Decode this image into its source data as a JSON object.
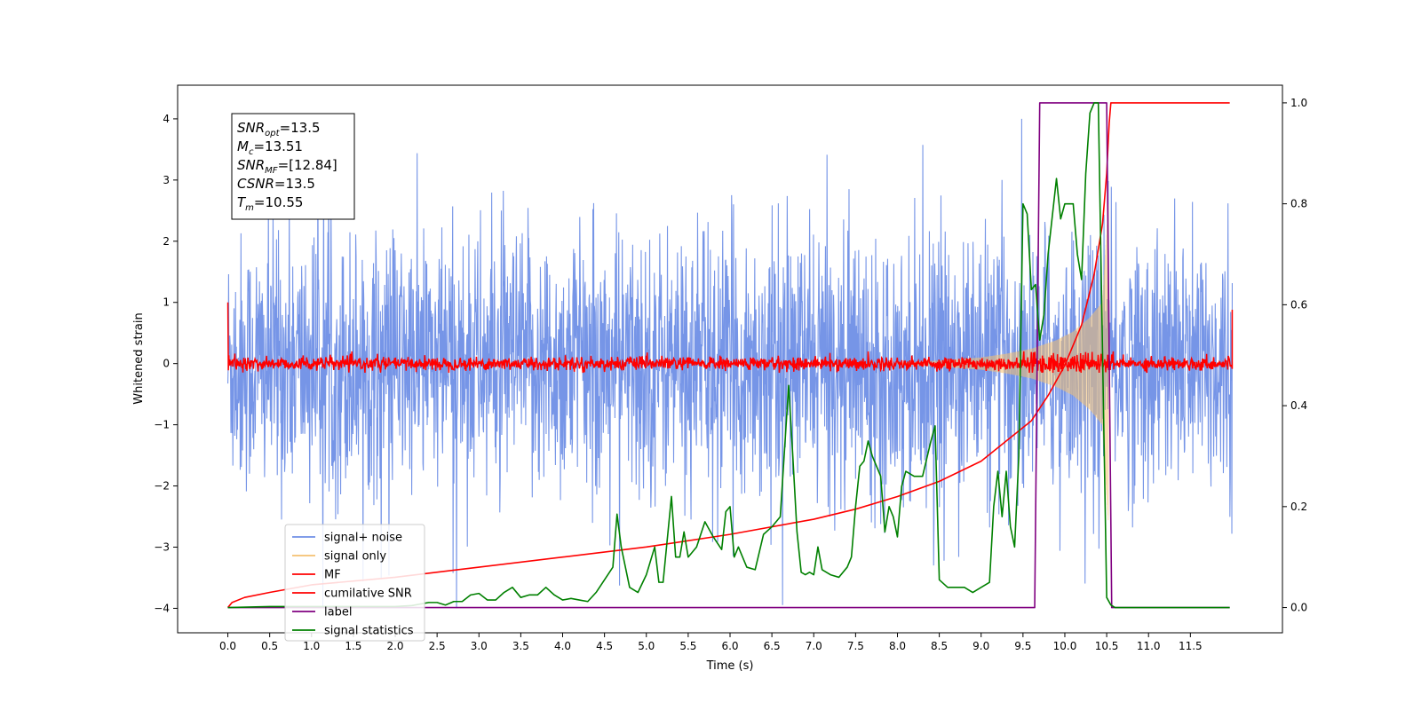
{
  "chart_data": {
    "type": "line",
    "xlabel": "Time (s)",
    "ylabel": "Whitened strain",
    "xlim": [
      -0.6,
      12.6
    ],
    "ylim": [
      -4.4,
      4.55
    ],
    "ylim_right": [
      -0.05,
      1.035
    ],
    "x_ticks": [
      0.0,
      0.5,
      1.0,
      1.5,
      2.0,
      2.5,
      3.0,
      3.5,
      4.0,
      4.5,
      5.0,
      5.5,
      6.0,
      6.5,
      7.0,
      7.5,
      8.0,
      8.5,
      9.0,
      9.5,
      10.0,
      10.5,
      11.0,
      11.5
    ],
    "x_tick_labels": [
      "0.0",
      "0.5",
      "1.0",
      "1.5",
      "2.0",
      "2.5",
      "3.0",
      "3.5",
      "4.0",
      "4.5",
      "5.0",
      "5.5",
      "6.0",
      "6.5",
      "7.0",
      "7.5",
      "8.0",
      "8.5",
      "9.0",
      "9.5",
      "10.0",
      "10.5",
      "11.0",
      "11.5"
    ],
    "y_ticks": [
      4,
      3,
      2,
      1,
      0,
      -1,
      -2,
      -3,
      -4
    ],
    "y_tick_labels": [
      "4",
      "3",
      "2",
      "1",
      "0",
      "−1",
      "−2",
      "−3",
      "−4"
    ],
    "y_right_ticks": [
      1.0,
      0.8,
      0.6,
      0.4,
      0.2,
      0.0
    ],
    "y_right_tick_labels": [
      "1.0",
      "0.8",
      "0.6",
      "0.4",
      "0.2",
      "0.0"
    ],
    "annotation": {
      "lines": [
        {
          "main": "SNR",
          "sub": "opt",
          "rest": "=13.5"
        },
        {
          "main": "M",
          "sub": "c",
          "rest": "=13.51"
        },
        {
          "main": "SNR",
          "sub": "MF",
          "rest": "=[12.84]"
        },
        {
          "main": "CSNR",
          "sub": "",
          "rest": "=13.5"
        },
        {
          "main": "T",
          "sub": "m",
          "rest": "=10.55"
        }
      ]
    },
    "legend": {
      "location": "lower-left",
      "entries": [
        "signal+ noise",
        "signal only",
        "MF",
        "cumilative SNR",
        "label",
        "signal statistics"
      ]
    },
    "series": [
      {
        "name": "signal+ noise",
        "color": "#6f8fe6",
        "axis": "left",
        "kind": "noise",
        "x_range": [
          0.0,
          12.0
        ],
        "approx_range": [
          -4.0,
          4.0
        ]
      },
      {
        "name": "signal only",
        "color": "#f5c170",
        "axis": "left",
        "kind": "chirp",
        "envelope_t": [
          8.0,
          8.5,
          9.0,
          9.3,
          9.6,
          9.9,
          10.1,
          10.3,
          10.45,
          10.52
        ],
        "envelope_a": [
          0.01,
          0.05,
          0.1,
          0.16,
          0.24,
          0.38,
          0.52,
          0.75,
          1.0,
          2.6
        ]
      },
      {
        "name": "MF",
        "color": "#ff0000",
        "axis": "left",
        "kind": "mf",
        "x_range": [
          0.0,
          12.0
        ],
        "start_value": 1.0,
        "end_value": 0.88,
        "approx_range": [
          -0.15,
          0.2
        ]
      },
      {
        "name": "cumilative SNR",
        "color": "#ff0000",
        "axis": "right",
        "x": [
          0.0,
          0.05,
          0.2,
          0.5,
          1.0,
          2.0,
          3.0,
          4.0,
          5.0,
          6.0,
          7.0,
          7.5,
          8.0,
          8.5,
          9.0,
          9.3,
          9.6,
          9.8,
          10.0,
          10.2,
          10.35,
          10.45,
          10.5,
          10.53,
          10.55,
          11.97
        ],
        "y": [
          0.0,
          0.01,
          0.02,
          0.03,
          0.045,
          0.06,
          0.08,
          0.1,
          0.12,
          0.145,
          0.175,
          0.195,
          0.22,
          0.25,
          0.29,
          0.33,
          0.37,
          0.42,
          0.48,
          0.56,
          0.66,
          0.76,
          0.86,
          0.96,
          1.0,
          1.0
        ]
      },
      {
        "name": "label",
        "color": "#800080",
        "axis": "right",
        "x": [
          0.0,
          9.64,
          9.7,
          10.5,
          10.56,
          11.97
        ],
        "y": [
          0.0,
          0.0,
          1.0,
          1.0,
          0.0,
          0.0
        ]
      },
      {
        "name": "signal statistics",
        "color": "#008000",
        "axis": "right",
        "x": [
          0.0,
          0.5,
          1.0,
          1.5,
          2.0,
          2.2,
          2.4,
          2.5,
          2.6,
          2.7,
          2.8,
          2.9,
          3.0,
          3.1,
          3.2,
          3.3,
          3.4,
          3.5,
          3.6,
          3.7,
          3.8,
          3.9,
          4.0,
          4.1,
          4.2,
          4.3,
          4.4,
          4.5,
          4.6,
          4.65,
          4.7,
          4.8,
          4.9,
          5.0,
          5.1,
          5.15,
          5.2,
          5.3,
          5.35,
          5.4,
          5.45,
          5.5,
          5.6,
          5.7,
          5.8,
          5.9,
          5.95,
          6.0,
          6.05,
          6.1,
          6.2,
          6.3,
          6.4,
          6.5,
          6.6,
          6.7,
          6.75,
          6.8,
          6.85,
          6.9,
          6.95,
          7.0,
          7.05,
          7.1,
          7.2,
          7.3,
          7.4,
          7.45,
          7.5,
          7.55,
          7.6,
          7.65,
          7.7,
          7.8,
          7.85,
          7.9,
          7.95,
          8.0,
          8.05,
          8.1,
          8.2,
          8.3,
          8.4,
          8.45,
          8.5,
          8.6,
          8.7,
          8.8,
          8.9,
          9.0,
          9.1,
          9.15,
          9.2,
          9.25,
          9.3,
          9.35,
          9.4,
          9.45,
          9.5,
          9.55,
          9.6,
          9.65,
          9.7,
          9.75,
          9.8,
          9.9,
          9.95,
          10.0,
          10.1,
          10.15,
          10.2,
          10.25,
          10.3,
          10.35,
          10.4,
          10.5,
          10.55,
          10.6,
          10.65,
          10.7,
          11.97
        ],
        "y": [
          0.0,
          0.002,
          0.002,
          0.002,
          0.002,
          0.004,
          0.01,
          0.01,
          0.005,
          0.012,
          0.012,
          0.025,
          0.028,
          0.015,
          0.015,
          0.03,
          0.04,
          0.02,
          0.025,
          0.025,
          0.04,
          0.025,
          0.015,
          0.018,
          0.015,
          0.012,
          0.03,
          0.055,
          0.08,
          0.185,
          0.12,
          0.04,
          0.03,
          0.065,
          0.12,
          0.05,
          0.05,
          0.22,
          0.1,
          0.1,
          0.15,
          0.1,
          0.12,
          0.17,
          0.14,
          0.115,
          0.19,
          0.2,
          0.1,
          0.12,
          0.08,
          0.075,
          0.145,
          0.16,
          0.18,
          0.44,
          0.3,
          0.15,
          0.07,
          0.065,
          0.07,
          0.065,
          0.12,
          0.075,
          0.065,
          0.06,
          0.08,
          0.1,
          0.2,
          0.28,
          0.29,
          0.33,
          0.3,
          0.26,
          0.15,
          0.2,
          0.18,
          0.14,
          0.24,
          0.27,
          0.26,
          0.26,
          0.33,
          0.36,
          0.055,
          0.04,
          0.04,
          0.04,
          0.03,
          0.04,
          0.05,
          0.2,
          0.27,
          0.18,
          0.27,
          0.16,
          0.12,
          0.3,
          0.8,
          0.78,
          0.63,
          0.64,
          0.53,
          0.58,
          0.7,
          0.85,
          0.77,
          0.8,
          0.8,
          0.7,
          0.65,
          0.86,
          0.98,
          1.0,
          1.0,
          0.02,
          0.005,
          0.0,
          0.0,
          0.0,
          0.0
        ]
      }
    ]
  }
}
